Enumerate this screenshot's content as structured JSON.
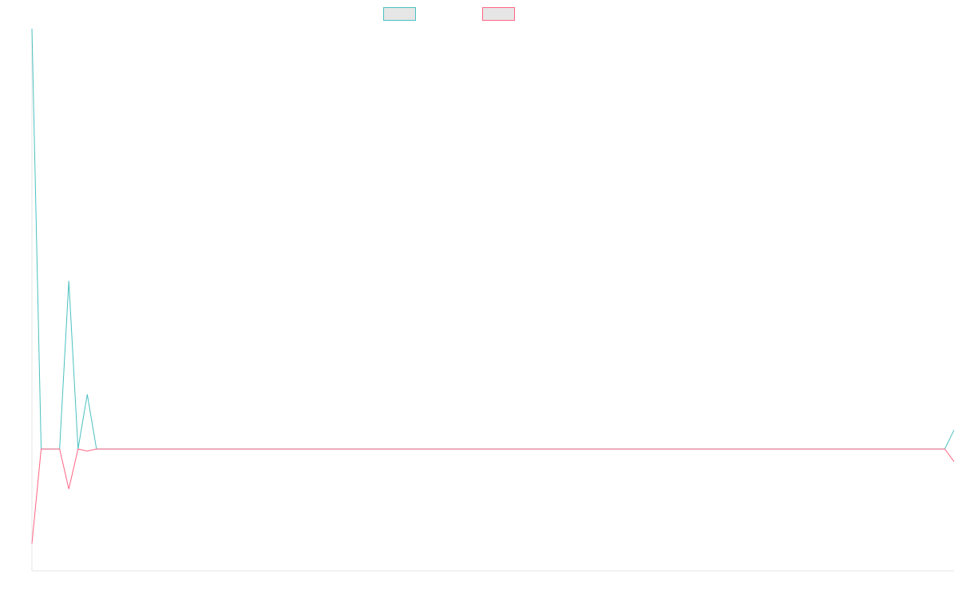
{
  "chart_data": {
    "type": "line",
    "title": "",
    "xlabel": "",
    "ylabel": "",
    "legend_position": "top-center",
    "grid": false,
    "x": [
      0,
      1,
      2,
      3,
      4,
      5,
      6,
      7,
      8,
      9,
      10,
      11,
      12,
      13,
      14,
      15,
      16,
      17,
      18,
      19,
      20,
      21,
      22,
      23,
      24,
      25,
      26,
      27,
      28,
      29,
      30,
      31,
      32,
      33,
      34,
      35,
      36,
      37,
      38,
      39,
      40,
      41,
      42,
      43,
      44,
      45,
      46,
      47,
      48,
      49,
      50,
      51,
      52,
      53,
      54,
      55,
      56,
      57,
      58,
      59,
      60,
      61,
      62,
      63,
      64,
      65,
      66,
      67,
      68,
      69,
      70,
      71,
      72,
      73,
      74,
      75,
      76,
      77,
      78,
      79,
      80,
      81,
      82,
      83,
      84,
      85,
      86,
      87,
      88,
      89,
      90,
      91,
      92,
      93,
      94,
      95,
      96,
      97,
      98,
      99,
      100
    ],
    "ylim": [
      -0.29,
      1.0
    ],
    "series": [
      {
        "name": "",
        "color": "#4bc0c0",
        "values": [
          1.0,
          0.0,
          0.0,
          0.0,
          0.4,
          0.0,
          0.13,
          0.0,
          0.0,
          0.0,
          0.0,
          0.0,
          0.0,
          0.0,
          0.0,
          0.0,
          0.0,
          0.0,
          0.0,
          0.0,
          0.0,
          0.0,
          0.0,
          0.0,
          0.0,
          0.0,
          0.0,
          0.0,
          0.0,
          0.0,
          0.0,
          0.0,
          0.0,
          0.0,
          0.0,
          0.0,
          0.0,
          0.0,
          0.0,
          0.0,
          0.0,
          0.0,
          0.0,
          0.0,
          0.0,
          0.0,
          0.0,
          0.0,
          0.0,
          0.0,
          0.0,
          0.0,
          0.0,
          0.0,
          0.0,
          0.0,
          0.0,
          0.0,
          0.0,
          0.0,
          0.0,
          0.0,
          0.0,
          0.0,
          0.0,
          0.0,
          0.0,
          0.0,
          0.0,
          0.0,
          0.0,
          0.0,
          0.0,
          0.0,
          0.0,
          0.0,
          0.0,
          0.0,
          0.0,
          0.0,
          0.0,
          0.0,
          0.0,
          0.0,
          0.0,
          0.0,
          0.0,
          0.0,
          0.0,
          0.0,
          0.0,
          0.0,
          0.0,
          0.0,
          0.0,
          0.0,
          0.0,
          0.0,
          0.0,
          0.0,
          0.045
        ]
      },
      {
        "name": "",
        "color": "#ff6384",
        "values": [
          -0.225,
          0.0,
          0.0,
          0.0,
          -0.095,
          0.0,
          -0.005,
          0.0,
          0.0,
          0.0,
          0.0,
          0.0,
          0.0,
          0.0,
          0.0,
          0.0,
          0.0,
          0.0,
          0.0,
          0.0,
          0.0,
          0.0,
          0.0,
          0.0,
          0.0,
          0.0,
          0.0,
          0.0,
          0.0,
          0.0,
          0.0,
          0.0,
          0.0,
          0.0,
          0.0,
          0.0,
          0.0,
          0.0,
          0.0,
          0.0,
          0.0,
          0.0,
          0.0,
          0.0,
          0.0,
          0.0,
          0.0,
          0.0,
          0.0,
          0.0,
          0.0,
          0.0,
          0.0,
          0.0,
          0.0,
          0.0,
          0.0,
          0.0,
          0.0,
          0.0,
          0.0,
          0.0,
          0.0,
          0.0,
          0.0,
          0.0,
          0.0,
          0.0,
          0.0,
          0.0,
          0.0,
          0.0,
          0.0,
          0.0,
          0.0,
          0.0,
          0.0,
          0.0,
          0.0,
          0.0,
          0.0,
          0.0,
          0.0,
          0.0,
          0.0,
          0.0,
          0.0,
          0.0,
          0.0,
          0.0,
          0.0,
          0.0,
          0.0,
          0.0,
          0.0,
          0.0,
          0.0,
          0.0,
          0.0,
          0.0,
          -0.03
        ]
      }
    ]
  }
}
